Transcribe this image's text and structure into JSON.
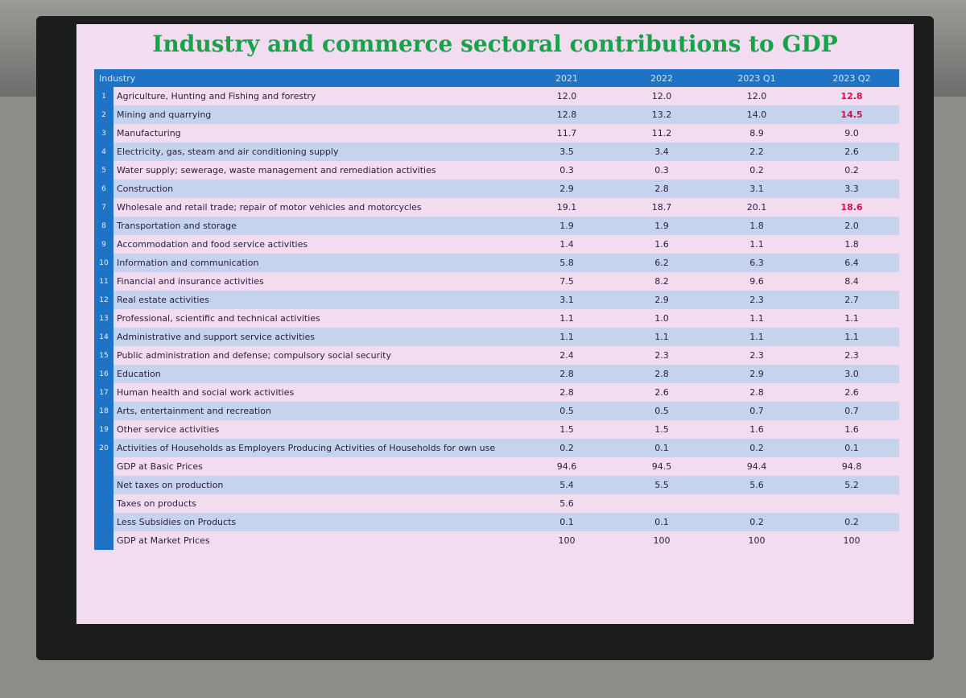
{
  "slide": {
    "title": "Industry and commerce sectoral contributions to GDP",
    "table": {
      "columns": [
        "Industry",
        "2021",
        "2022",
        "2023 Q1",
        "2023 Q2"
      ],
      "rows": [
        {
          "num": "1",
          "label": "Agriculture, Hunting and Fishing and forestry",
          "values": [
            "12.0",
            "12.0",
            "12.0",
            "12.8"
          ]
        },
        {
          "num": "2",
          "label": "Mining and quarrying",
          "values": [
            "12.8",
            "13.2",
            "14.0",
            "14.5"
          ]
        },
        {
          "num": "3",
          "label": "Manufacturing",
          "values": [
            "11.7",
            "11.2",
            "8.9",
            "9.0"
          ]
        },
        {
          "num": "4",
          "label": "Electricity, gas, steam and air conditioning supply",
          "values": [
            "3.5",
            "3.4",
            "2.2",
            "2.6"
          ]
        },
        {
          "num": "5",
          "label": "Water supply; sewerage, waste management and remediation activities",
          "values": [
            "0.3",
            "0.3",
            "0.2",
            "0.2"
          ]
        },
        {
          "num": "6",
          "label": "Construction",
          "values": [
            "2.9",
            "2.8",
            "3.1",
            "3.3"
          ]
        },
        {
          "num": "7",
          "label": "Wholesale and retail trade; repair of motor vehicles and motorcycles",
          "values": [
            "19.1",
            "18.7",
            "20.1",
            "18.6"
          ]
        },
        {
          "num": "8",
          "label": "Transportation and storage",
          "values": [
            "1.9",
            "1.9",
            "1.8",
            "2.0"
          ]
        },
        {
          "num": "9",
          "label": "Accommodation and food service activities",
          "values": [
            "1.4",
            "1.6",
            "1.1",
            "1.8"
          ]
        },
        {
          "num": "10",
          "label": "Information and communication",
          "values": [
            "5.8",
            "6.2",
            "6.3",
            "6.4"
          ]
        },
        {
          "num": "11",
          "label": "Financial and insurance activities",
          "values": [
            "7.5",
            "8.2",
            "9.6",
            "8.4"
          ]
        },
        {
          "num": "12",
          "label": "Real estate activities",
          "values": [
            "3.1",
            "2.9",
            "2.3",
            "2.7"
          ]
        },
        {
          "num": "13",
          "label": "Professional, scientific and technical activities",
          "values": [
            "1.1",
            "1.0",
            "1.1",
            "1.1"
          ]
        },
        {
          "num": "14",
          "label": "Administrative and support service activities",
          "values": [
            "1.1",
            "1.1",
            "1.1",
            "1.1"
          ]
        },
        {
          "num": "15",
          "label": "Public administration and defense; compulsory social security",
          "values": [
            "2.4",
            "2.3",
            "2.3",
            "2.3"
          ]
        },
        {
          "num": "16",
          "label": "Education",
          "values": [
            "2.8",
            "2.8",
            "2.9",
            "3.0"
          ]
        },
        {
          "num": "17",
          "label": "Human health and social work activities",
          "values": [
            "2.8",
            "2.6",
            "2.8",
            "2.6"
          ]
        },
        {
          "num": "18",
          "label": "Arts, entertainment and recreation",
          "values": [
            "0.5",
            "0.5",
            "0.7",
            "0.7"
          ]
        },
        {
          "num": "19",
          "label": "Other service activities",
          "values": [
            "1.5",
            "1.5",
            "1.6",
            "1.6"
          ]
        },
        {
          "num": "20",
          "label": "Activities of Households as Employers Producing Activities of Households for own use",
          "values": [
            "0.2",
            "0.1",
            "0.2",
            "0.1"
          ]
        },
        {
          "label": "GDP at Basic Prices",
          "values": [
            "94.6",
            "94.5",
            "94.4",
            "94.8"
          ]
        },
        {
          "label": "Net taxes on production",
          "values": [
            "5.4",
            "5.5",
            "5.6",
            "5.2"
          ]
        },
        {
          "label": "Taxes on products",
          "values": [
            "5.6",
            null,
            null,
            null
          ]
        },
        {
          "label": "Less Subsidies on Products",
          "values": [
            "0.1",
            "0.1",
            "0.2",
            "0.2"
          ]
        },
        {
          "label": "GDP at Market Prices",
          "values": [
            "100",
            "100",
            "100",
            "100"
          ]
        }
      ]
    }
  }
}
